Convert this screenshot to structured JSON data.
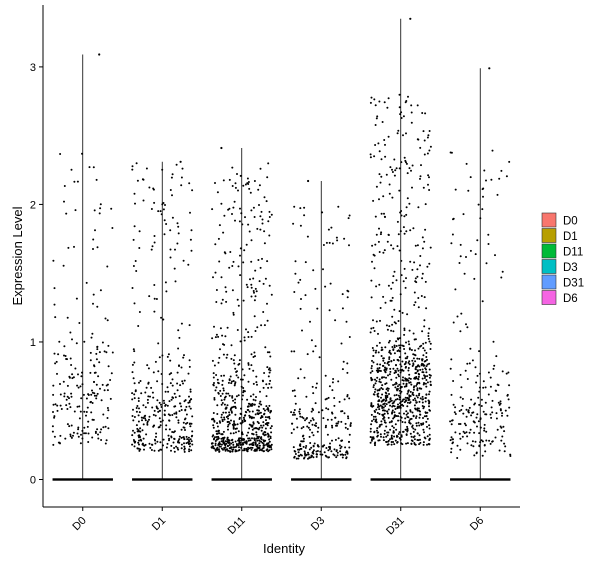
{
  "chart_data": {
    "type": "violin-jitter",
    "title": "",
    "xlabel": "Identity",
    "ylabel": "Expression Level",
    "ylim": [
      -0.2,
      3.45
    ],
    "yticks": [
      0,
      1,
      2,
      3
    ],
    "categories": [
      "D0",
      "D1",
      "D11",
      "D3",
      "D31",
      "D6"
    ],
    "legend": {
      "placement": "right",
      "entries": [
        {
          "label": "D0",
          "color": "#F8766D"
        },
        {
          "label": "D1",
          "color": "#B79F00"
        },
        {
          "label": "D11",
          "color": "#00BA38"
        },
        {
          "label": "D3",
          "color": "#00BFC4"
        },
        {
          "label": "D31",
          "color": "#619CFF"
        },
        {
          "label": "D6",
          "color": "#F564E3"
        }
      ]
    },
    "series": [
      {
        "category": "D0",
        "max": 3.09,
        "npoints": 210,
        "spread": [
          0.25,
          2.45
        ],
        "mode": 0.55,
        "zero_baseline": true
      },
      {
        "category": "D1",
        "max": 2.31,
        "npoints": 380,
        "spread": [
          0.2,
          2.3
        ],
        "mode": 0.4,
        "zero_baseline": true
      },
      {
        "category": "D11",
        "max": 2.41,
        "npoints": 720,
        "spread": [
          0.2,
          2.3
        ],
        "mode": 0.35,
        "zero_baseline": true
      },
      {
        "category": "D3",
        "max": 2.17,
        "npoints": 280,
        "spread": [
          0.15,
          2.0
        ],
        "mode": 0.3,
        "zero_baseline": true
      },
      {
        "category": "D31",
        "max": 3.35,
        "npoints": 900,
        "spread": [
          0.25,
          2.8
        ],
        "mode": 0.6,
        "zero_baseline": true
      },
      {
        "category": "D6",
        "max": 2.99,
        "npoints": 220,
        "spread": [
          0.15,
          2.4
        ],
        "mode": 0.45,
        "zero_baseline": true
      }
    ]
  }
}
